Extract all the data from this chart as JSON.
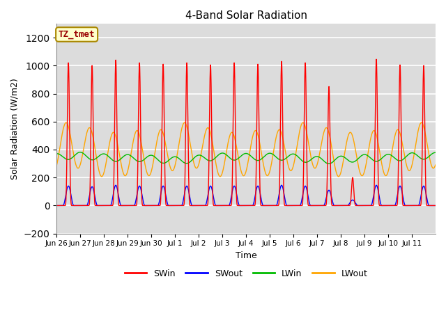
{
  "title": "4-Band Solar Radiation",
  "ylabel": "Solar Radiation (W/m2)",
  "xlabel": "Time",
  "ylim": [
    -200,
    1300
  ],
  "yticks": [
    -200,
    0,
    200,
    400,
    600,
    800,
    1000,
    1200
  ],
  "label_box": "TZ_tmet",
  "legend_labels": [
    "SWin",
    "SWout",
    "LWin",
    "LWout"
  ],
  "legend_colors": [
    "#ff0000",
    "#0000ff",
    "#00bb00",
    "#ffa500"
  ],
  "background_color": "#ffffff",
  "plot_bg_light": "#f0f0f0",
  "plot_bg_white": "#e0e0e0",
  "grid_color": "#ffffff",
  "num_days": 16,
  "day_peaks_SWin": [
    1020,
    1000,
    1040,
    1020,
    1010,
    1020,
    1005,
    1020,
    1010,
    1030,
    1020,
    850,
    200,
    1045,
    1005,
    1000
  ],
  "day_peaks_SWout": [
    140,
    135,
    145,
    140,
    140,
    140,
    140,
    140,
    140,
    145,
    140,
    110,
    40,
    145,
    140,
    140
  ],
  "LWin_base": 340,
  "LWin_amp": 25,
  "LWout_base": 390,
  "LWout_amp": 160,
  "tick_labels": [
    "Jun 26",
    "Jun 27",
    "Jun 28",
    "Jun 29",
    "Jun 30",
    "Jul 1",
    "Jul 2",
    "Jul 3",
    "Jul 4",
    "Jul 5",
    "Jul 6",
    "Jul 7",
    "Jul 8",
    "Jul 9",
    "Jul 10",
    "Jul 11"
  ]
}
